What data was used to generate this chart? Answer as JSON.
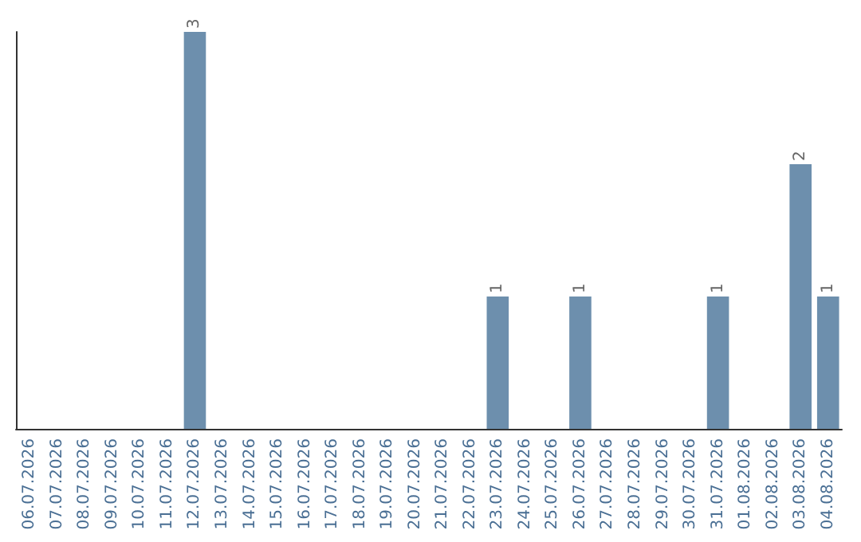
{
  "chart_data": {
    "type": "bar",
    "categories": [
      "06.07.2026",
      "07.07.2026",
      "08.07.2026",
      "09.07.2026",
      "10.07.2026",
      "11.07.2026",
      "12.07.2026",
      "13.07.2026",
      "14.07.2026",
      "15.07.2026",
      "16.07.2026",
      "17.07.2026",
      "18.07.2026",
      "19.07.2026",
      "20.07.2026",
      "21.07.2026",
      "22.07.2026",
      "23.07.2026",
      "24.07.2026",
      "25.07.2026",
      "26.07.2026",
      "27.07.2026",
      "28.07.2026",
      "29.07.2026",
      "30.07.2026",
      "31.07.2026",
      "01.08.2026",
      "02.08.2026",
      "03.08.2026",
      "04.08.2026"
    ],
    "values": [
      0,
      0,
      0,
      0,
      0,
      0,
      3,
      0,
      0,
      0,
      0,
      0,
      0,
      0,
      0,
      0,
      0,
      1,
      0,
      0,
      1,
      0,
      0,
      0,
      0,
      1,
      0,
      0,
      2,
      1
    ],
    "value_labels": [
      null,
      null,
      null,
      null,
      null,
      null,
      "3",
      null,
      null,
      null,
      null,
      null,
      null,
      null,
      null,
      null,
      null,
      "1",
      null,
      null,
      "1",
      null,
      null,
      null,
      null,
      "1",
      null,
      null,
      "2",
      "1"
    ],
    "color": "#6d8fad",
    "tick_labels": "x"
  }
}
